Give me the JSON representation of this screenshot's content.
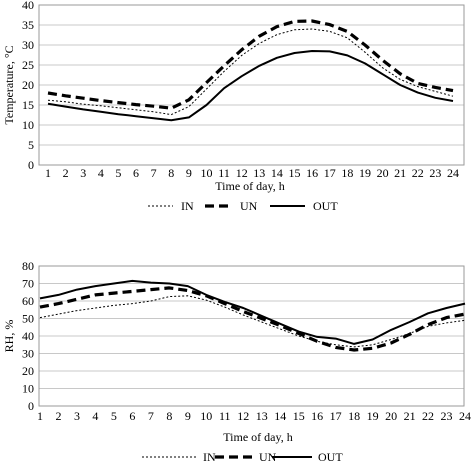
{
  "chart_data": [
    {
      "type": "line",
      "xlabel": "Time of day, h",
      "ylabel": "Temperature, °C",
      "x": [
        1,
        2,
        3,
        4,
        5,
        6,
        7,
        8,
        9,
        10,
        11,
        12,
        13,
        14,
        15,
        16,
        17,
        18,
        19,
        20,
        21,
        22,
        23,
        24
      ],
      "ylim": [
        0,
        40
      ],
      "yticks": [
        0,
        5,
        10,
        15,
        20,
        25,
        30,
        35,
        40
      ],
      "grid": true,
      "legend": "bottom",
      "series": [
        {
          "name": "IN",
          "style": "dotted",
          "color": "#000000",
          "values": [
            16.2,
            15.8,
            15.2,
            14.8,
            14.3,
            13.8,
            13.3,
            12.6,
            14.6,
            19.0,
            23.4,
            27.4,
            30.4,
            32.6,
            33.8,
            34.0,
            33.4,
            31.8,
            28.2,
            24.3,
            21.4,
            19.6,
            18.4,
            17.2
          ]
        },
        {
          "name": "UN",
          "style": "dashed",
          "color": "#000000",
          "values": [
            18.0,
            17.3,
            16.7,
            16.1,
            15.6,
            15.1,
            14.7,
            14.2,
            16.3,
            20.6,
            24.8,
            28.8,
            32.2,
            34.6,
            35.9,
            36.0,
            35.1,
            33.4,
            30.0,
            26.2,
            22.8,
            20.4,
            19.4,
            18.6
          ]
        },
        {
          "name": "OUT",
          "style": "solid",
          "color": "#000000",
          "values": [
            15.3,
            14.6,
            13.9,
            13.3,
            12.7,
            12.2,
            11.7,
            11.2,
            11.9,
            15.0,
            19.2,
            22.2,
            24.8,
            26.8,
            28.0,
            28.5,
            28.4,
            27.4,
            25.4,
            22.7,
            20.0,
            18.1,
            16.8,
            16.0
          ]
        }
      ]
    },
    {
      "type": "line",
      "xlabel": "Time of day, h",
      "ylabel": "RH, %",
      "x": [
        1,
        2,
        3,
        4,
        5,
        6,
        7,
        8,
        9,
        10,
        11,
        12,
        13,
        14,
        15,
        16,
        17,
        18,
        19,
        20,
        21,
        22,
        23,
        24
      ],
      "ylim": [
        0,
        80
      ],
      "yticks": [
        0,
        10,
        20,
        30,
        40,
        50,
        60,
        70,
        80
      ],
      "grid": true,
      "legend": "bottom",
      "series": [
        {
          "name": "IN",
          "style": "dotted",
          "color": "#000000",
          "values": [
            50.5,
            52.5,
            54.5,
            56.0,
            57.5,
            58.5,
            60.0,
            62.5,
            63.0,
            60.5,
            56.5,
            52.0,
            48.0,
            44.0,
            40.0,
            37.0,
            35.0,
            33.8,
            35.0,
            38.0,
            41.5,
            45.5,
            47.5,
            49.0
          ]
        },
        {
          "name": "UN",
          "style": "dashed",
          "color": "#000000",
          "values": [
            56.5,
            58.5,
            61.0,
            63.5,
            64.5,
            65.5,
            66.5,
            67.5,
            66.0,
            63.0,
            58.5,
            54.0,
            50.0,
            46.0,
            41.5,
            37.0,
            33.5,
            32.0,
            33.0,
            36.0,
            41.0,
            46.5,
            50.5,
            52.5
          ]
        },
        {
          "name": "OUT",
          "style": "solid",
          "color": "#000000",
          "values": [
            61.5,
            63.5,
            66.5,
            68.5,
            70.0,
            71.5,
            70.5,
            70.0,
            68.5,
            63.5,
            59.5,
            56.0,
            51.5,
            47.0,
            42.5,
            39.5,
            38.5,
            35.5,
            38.0,
            43.5,
            48.0,
            53.0,
            56.0,
            58.5
          ]
        }
      ]
    }
  ]
}
